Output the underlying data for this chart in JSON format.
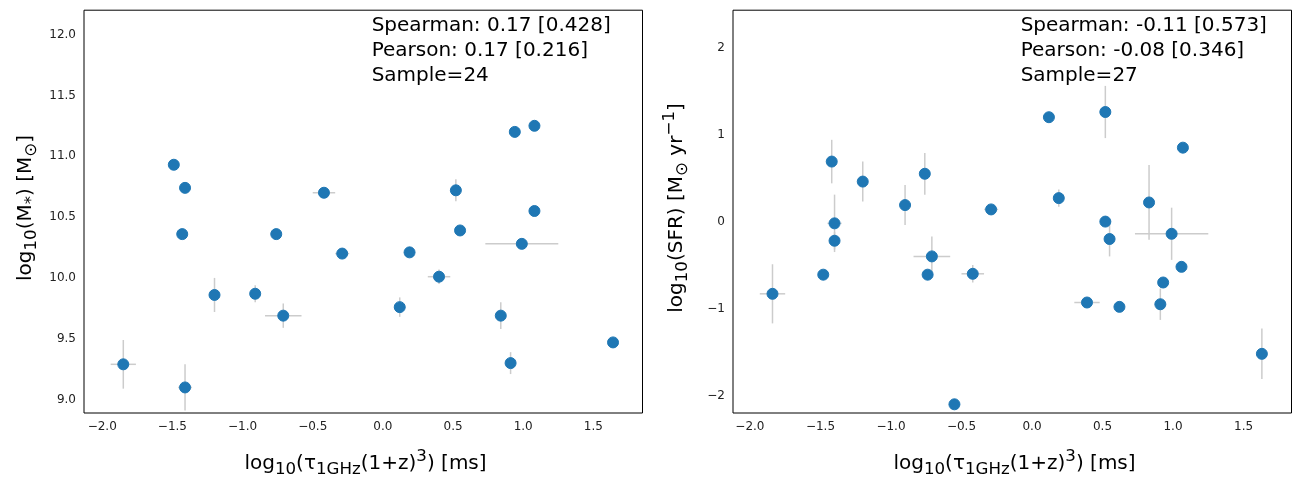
{
  "chart_data": [
    {
      "type": "scatter",
      "xlabel": "log$_{10}$(τ$_{1GHz}$(1+z)$^{3}$) [ms]",
      "ylabel": "log$_{10}$(M$_{*}$) [M$_{⊙}$]",
      "annotations": [
        "Spearman: 0.17 [0.428]",
        "Pearson: 0.17 [0.216]",
        "Sample=24"
      ],
      "marker": "circle",
      "grid": false,
      "legend": false,
      "series": [
        {
          "color": "#1f77b4",
          "x": [
            -1.49,
            -1.41,
            -1.43,
            -1.2,
            -0.91,
            -0.71,
            -0.76,
            -0.42,
            -0.29,
            0.12,
            0.19,
            0.4,
            0.52,
            0.55,
            0.84,
            0.91,
            0.94,
            1.08,
            1.08,
            0.99,
            1.64,
            -1.85,
            -1.41
          ],
          "values": [
            10.93,
            10.74,
            10.36,
            9.86,
            9.87,
            9.69,
            10.36,
            10.7,
            10.2,
            9.76,
            10.21,
            10.01,
            10.72,
            10.39,
            9.69,
            9.3,
            11.2,
            11.25,
            10.55,
            10.28,
            9.47,
            9.29,
            9.1
          ],
          "errors": [
            null,
            null,
            null,
            0.14,
            0.07,
            0.1,
            null,
            null,
            null,
            0.08,
            null,
            0.06,
            0.09,
            null,
            0.11,
            0.09,
            null,
            null,
            null,
            null,
            null,
            0.2,
            0.19
          ],
          "xerrors": [
            null,
            null,
            null,
            null,
            null,
            0.13,
            null,
            0.08,
            0.05,
            null,
            null,
            0.08,
            null,
            null,
            null,
            null,
            null,
            null,
            null,
            0.26,
            null,
            0.09,
            0.05
          ]
        }
      ],
      "xlim": [
        -2.13,
        1.85
      ],
      "ylim": [
        8.89,
        12.2
      ],
      "xticks": [
        {
          "value": -2,
          "label": "−2.0"
        },
        {
          "value": -1.5,
          "label": "−1.5"
        },
        {
          "value": -1,
          "label": "−1.0"
        },
        {
          "value": -0.5,
          "label": "−0.5"
        },
        {
          "value": 0,
          "label": "0.0"
        },
        {
          "value": 0.5,
          "label": "0.5"
        },
        {
          "value": 1,
          "label": "1.0"
        },
        {
          "value": 1.5,
          "label": "1.5"
        }
      ],
      "yticks": [
        {
          "value": 9,
          "label": "9.0"
        },
        9.5,
        {
          "value": 10,
          "label": "10.0"
        },
        10.5,
        {
          "value": 11,
          "label": "11.0"
        },
        11.5,
        {
          "value": 12,
          "label": "12.0"
        }
      ]
    },
    {
      "type": "scatter",
      "xlabel": "log$_{10}$(τ$_{1GHz}$(1+z)$^{3}$) [ms]",
      "ylabel": "log$_{10}$(SFR) [M$_{⊙}$ yr$^{−1}$]",
      "annotations": [
        "Spearman: -0.11 [0.573]",
        "Pearson: -0.08 [0.346]",
        "Sample=27"
      ],
      "marker": "circle",
      "grid": false,
      "legend": false,
      "series": [
        {
          "color": "#1f77b4",
          "x": [
            -1.84,
            -1.48,
            -1.42,
            -1.4,
            -1.4,
            -1.2,
            -0.9,
            -0.76,
            -0.71,
            -0.74,
            -0.42,
            -0.55,
            -0.29,
            0.12,
            0.19,
            0.39,
            0.52,
            0.52,
            0.55,
            0.62,
            0.83,
            0.99,
            0.91,
            0.93,
            1.06,
            1.07,
            1.63
          ],
          "values": [
            -0.83,
            -0.61,
            0.69,
            -0.02,
            -0.22,
            0.46,
            0.19,
            0.55,
            -0.4,
            -0.61,
            -0.6,
            -2.1,
            0.14,
            1.2,
            0.27,
            -0.93,
            1.26,
            0.0,
            -0.2,
            -0.98,
            0.22,
            -0.14,
            -0.95,
            -0.7,
            -0.52,
            0.85,
            -1.52
          ],
          "errors": [
            0.34,
            0.05,
            0.25,
            0.33,
            0.1,
            0.23,
            0.23,
            0.24,
            0.23,
            null,
            0.1,
            null,
            null,
            null,
            0.1,
            null,
            0.3,
            null,
            0.2,
            null,
            0.43,
            0.3,
            0.18,
            null,
            null,
            null,
            0.29
          ],
          "xerrors": [
            0.09,
            null,
            null,
            0.05,
            null,
            null,
            null,
            null,
            0.13,
            null,
            0.08,
            null,
            0.05,
            null,
            null,
            0.09,
            null,
            null,
            null,
            null,
            null,
            0.26,
            null,
            null,
            null,
            null,
            null
          ]
        }
      ],
      "xlim": [
        -2.12,
        1.84
      ],
      "ylim": [
        -2.2,
        2.43
      ],
      "xticks": [
        {
          "value": -2,
          "label": "−2.0"
        },
        {
          "value": -1.5,
          "label": "−1.5"
        },
        {
          "value": -1,
          "label": "−1.0"
        },
        {
          "value": -0.5,
          "label": "−0.5"
        },
        {
          "value": 0,
          "label": "0.0"
        },
        {
          "value": 0.5,
          "label": "0.5"
        },
        {
          "value": 1,
          "label": "1.0"
        },
        {
          "value": 1.5,
          "label": "1.5"
        }
      ],
      "yticks": [
        {
          "value": -2,
          "label": "−2"
        },
        {
          "value": -1,
          "label": "−1"
        },
        0,
        1,
        2
      ]
    }
  ]
}
